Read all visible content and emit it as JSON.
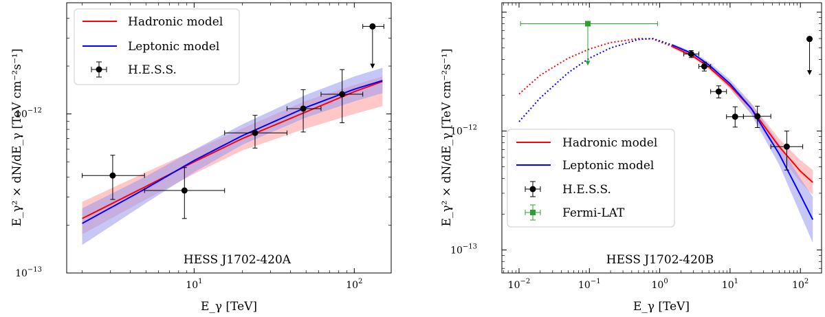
{
  "chart_data": [
    {
      "type": "line",
      "panel_label": "HESS J1702-420A",
      "xscale": "log",
      "yscale": "log",
      "xlim": [
        1.6,
        170
      ],
      "ylim": [
        1e-13,
        5e-12
      ],
      "xlabel": "E_γ [TeV]",
      "ylabel": "E_γ² × dN/dE_γ [TeV cm⁻²s⁻¹]",
      "x_ticks": [
        {
          "value": 10,
          "base": "10",
          "exp": "1"
        },
        {
          "value": 100,
          "base": "10",
          "exp": "2"
        }
      ],
      "y_ticks": [
        {
          "value": 1e-13,
          "base": "10",
          "exp": "−13"
        },
        {
          "value": 1e-12,
          "base": "10",
          "exp": "−12"
        }
      ],
      "legend": {
        "position": "top-left",
        "entries": [
          {
            "label": "Hadronic model",
            "kind": "line",
            "color": "#ff0000"
          },
          {
            "label": "Leptonic model",
            "kind": "line",
            "color": "#0000ff"
          },
          {
            "label": "H.E.S.S.",
            "kind": "errorbar",
            "color": "#000000",
            "marker": "circle"
          }
        ]
      },
      "series": [
        {
          "name": "Hadronic model",
          "color": "#ff0000",
          "band_color": "#ff9999",
          "x": [
            2,
            5,
            10,
            20,
            50,
            100,
            150
          ],
          "y": [
            2.2e-13,
            3.5e-13,
            5e-13,
            7e-13,
            1.03e-12,
            1.38e-12,
            1.6e-12
          ],
          "band_low": [
            1.75e-13,
            2.9e-13,
            4.2e-13,
            5.9e-13,
            8.1e-13,
            1e-12,
            1.12e-12
          ],
          "band_high": [
            2.8e-13,
            4.3e-13,
            5.9e-13,
            8.1e-13,
            1.21e-12,
            1.52e-12,
            1.72e-12
          ]
        },
        {
          "name": "Leptonic model",
          "color": "#0000ff",
          "band_color": "#9999ee",
          "x": [
            2,
            5,
            10,
            20,
            50,
            100,
            150
          ],
          "y": [
            2.05e-13,
            3.4e-13,
            5.1e-13,
            7.3e-13,
            1.1e-12,
            1.43e-12,
            1.62e-12
          ],
          "band_low": [
            1.5e-13,
            2.75e-13,
            4.3e-13,
            6.4e-13,
            9.5e-13,
            1.2e-12,
            1.35e-12
          ],
          "band_high": [
            2.55e-13,
            4.05e-13,
            5.95e-13,
            8.6e-13,
            1.32e-12,
            1.72e-12,
            1.95e-12
          ]
        },
        {
          "name": "H.E.S.S.",
          "kind": "errorbar",
          "color": "#000000",
          "marker": "circle",
          "points": [
            {
              "x": 3.1,
              "y": 4.1e-13,
              "xlo": 2.0,
              "xhi": 4.9,
              "ylo": 2.9e-13,
              "yhi": 5.5e-13
            },
            {
              "x": 8.7,
              "y": 3.3e-13,
              "xlo": 4.9,
              "xhi": 15.5,
              "ylo": 2.2e-13,
              "yhi": 4.6e-13
            },
            {
              "x": 24,
              "y": 7.6e-13,
              "xlo": 15.5,
              "xhi": 38,
              "ylo": 6.1e-13,
              "yhi": 9.8e-13
            },
            {
              "x": 48,
              "y": 1.08e-12,
              "xlo": 38,
              "xhi": 62,
              "ylo": 7.7e-13,
              "yhi": 1.42e-12
            },
            {
              "x": 84,
              "y": 1.33e-12,
              "xlo": 62,
              "xhi": 113,
              "ylo": 8.8e-13,
              "yhi": 1.9e-12
            },
            {
              "x": 130,
              "y": 3.55e-12,
              "xlo": 113,
              "xhi": 153,
              "yarrow_to": 1.95e-12,
              "upper_limit": true
            }
          ]
        }
      ]
    },
    {
      "type": "line",
      "panel_label": "HESS J1702-420B",
      "xscale": "log",
      "yscale": "log",
      "xlim": [
        0.0057,
        200
      ],
      "ylim": [
        6.4e-14,
        1.2e-11
      ],
      "xlabel": "E_γ [TeV]",
      "ylabel": "E_γ² × dN/dE_γ [TeV cm⁻²s⁻¹]",
      "x_ticks": [
        {
          "value": 0.01,
          "base": "10",
          "exp": "−2"
        },
        {
          "value": 0.1,
          "base": "10",
          "exp": "−1"
        },
        {
          "value": 1,
          "base": "10",
          "exp": "0"
        },
        {
          "value": 10,
          "base": "10",
          "exp": "1"
        },
        {
          "value": 100,
          "base": "10",
          "exp": "2"
        }
      ],
      "y_ticks": [
        {
          "value": 1e-13,
          "base": "10",
          "exp": "−13"
        },
        {
          "value": 1e-12,
          "base": "10",
          "exp": "−12"
        }
      ],
      "legend": {
        "position": "lower-left",
        "entries": [
          {
            "label": "Hadronic model",
            "kind": "line",
            "color": "#ff0000"
          },
          {
            "label": "Leptonic model",
            "kind": "line",
            "color": "#0000ff"
          },
          {
            "label": "H.E.S.S.",
            "kind": "errorbar",
            "color": "#000000",
            "marker": "circle"
          },
          {
            "label": "Fermi-LAT",
            "kind": "errorbar",
            "color": "#2ca02c",
            "marker": "square"
          }
        ]
      },
      "series": [
        {
          "name": "Hadronic model",
          "color": "#ff0000",
          "band_color": "#ff9999",
          "dotted_below": 1.5,
          "x": [
            0.01,
            0.02,
            0.05,
            0.1,
            0.2,
            0.5,
            0.8,
            1.5,
            3,
            5,
            10,
            20,
            50,
            100,
            150
          ],
          "y": [
            2.05e-12,
            2.95e-12,
            4.1e-12,
            4.9e-12,
            5.55e-12,
            6e-12,
            5.95e-12,
            5.15e-12,
            4.25e-12,
            3.45e-12,
            2.4e-12,
            1.55e-12,
            7.4e-13,
            4.6e-13,
            3.7e-13
          ],
          "band_low": [
            null,
            null,
            null,
            null,
            null,
            null,
            null,
            5e-12,
            4.1e-12,
            3.3e-12,
            2.25e-12,
            1.4e-12,
            6.3e-13,
            3.7e-13,
            2.9e-13
          ],
          "band_high": [
            null,
            null,
            null,
            null,
            null,
            null,
            null,
            5.3e-12,
            4.4e-12,
            3.6e-12,
            2.55e-12,
            1.7e-12,
            8.6e-13,
            5.7e-13,
            4.7e-13
          ]
        },
        {
          "name": "Leptonic model",
          "color": "#0000ff",
          "band_color": "#9999ee",
          "dotted_below": 1.5,
          "x": [
            0.01,
            0.02,
            0.05,
            0.1,
            0.2,
            0.5,
            0.8,
            1.5,
            3,
            5,
            10,
            20,
            50,
            100,
            150
          ],
          "y": [
            1.2e-12,
            1.9e-12,
            3.1e-12,
            4.1e-12,
            5e-12,
            5.9e-12,
            6e-12,
            5.3e-12,
            4.45e-12,
            3.6e-12,
            2.5e-12,
            1.55e-12,
            6.4e-13,
            2.9e-13,
            1.8e-13
          ],
          "band_low": [
            null,
            null,
            null,
            null,
            null,
            null,
            null,
            5.15e-12,
            4.3e-12,
            3.4e-12,
            2.3e-12,
            1.38e-12,
            5.2e-13,
            2e-13,
            1.15e-13
          ],
          "band_high": [
            null,
            null,
            null,
            null,
            null,
            null,
            null,
            5.45e-12,
            4.6e-12,
            3.8e-12,
            2.7e-12,
            1.72e-12,
            7.8e-13,
            4e-13,
            2.8e-13
          ]
        },
        {
          "name": "H.E.S.S.",
          "kind": "errorbar",
          "color": "#000000",
          "marker": "circle",
          "points": [
            {
              "x": 2.8,
              "y": 4.45e-12,
              "xlo": 2.2,
              "xhi": 3.6,
              "ylo": 4.15e-12,
              "yhi": 4.75e-12
            },
            {
              "x": 4.3,
              "y": 3.5e-12,
              "xlo": 3.6,
              "xhi": 5.3,
              "ylo": 3.2e-12,
              "yhi": 3.8e-12
            },
            {
              "x": 6.9,
              "y": 2.15e-12,
              "xlo": 5.3,
              "xhi": 8.9,
              "ylo": 1.9e-12,
              "yhi": 2.4e-12
            },
            {
              "x": 11.8,
              "y": 1.32e-12,
              "xlo": 8.9,
              "xhi": 15.5,
              "ylo": 1.08e-12,
              "yhi": 1.6e-12
            },
            {
              "x": 24.5,
              "y": 1.33e-12,
              "xlo": 15.5,
              "xhi": 38,
              "ylo": 1.07e-12,
              "yhi": 1.62e-12
            },
            {
              "x": 64,
              "y": 7.4e-13,
              "xlo": 38,
              "xhi": 108,
              "ylo": 4.7e-13,
              "yhi": 1e-12
            },
            {
              "x": 135,
              "y": 5.95e-12,
              "yarrow_to": 3e-12,
              "upper_limit": true
            }
          ]
        },
        {
          "name": "Fermi-LAT",
          "kind": "errorbar",
          "color": "#2ca02c",
          "marker": "square",
          "points": [
            {
              "x": 0.095,
              "y": 8e-12,
              "xlo": 0.0105,
              "xhi": 0.93,
              "yarrow_to": 3.6e-12,
              "upper_limit": true
            }
          ]
        }
      ]
    }
  ]
}
